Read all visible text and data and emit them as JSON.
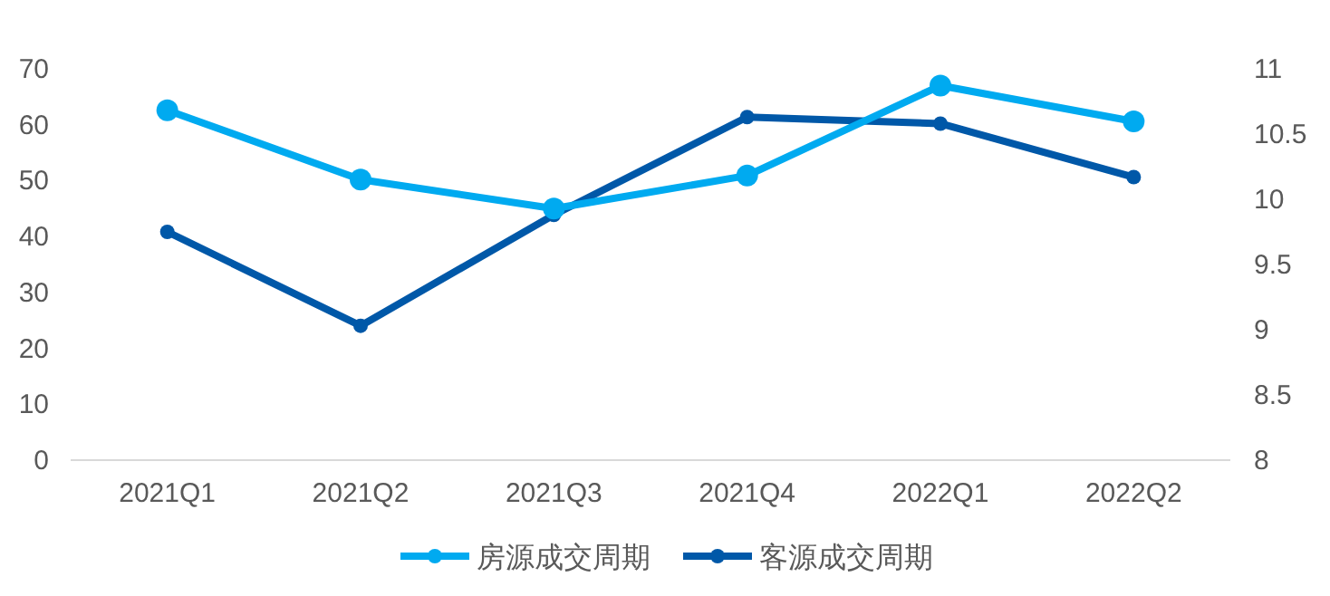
{
  "chart_data": {
    "type": "line",
    "categories": [
      "2021Q1",
      "2021Q2",
      "2021Q3",
      "2021Q4",
      "2022Q1",
      "2022Q2"
    ],
    "series": [
      {
        "name": "房源成交周期",
        "color": "#00aaf0",
        "values": [
          62.6,
          50.2,
          45,
          50.9,
          67,
          60.6
        ]
      },
      {
        "name": "客源成交周期",
        "color": "#0058a8",
        "axis": "y2",
        "values": [
          9.75,
          9.03,
          9.88,
          10.63,
          10.58,
          10.17
        ]
      }
    ],
    "ylim": [
      0,
      70
    ],
    "yticks": [
      0,
      10,
      20,
      30,
      40,
      50,
      60,
      70
    ],
    "y2lim": [
      8,
      11
    ],
    "y2ticks": [
      8,
      8.5,
      9,
      9.5,
      10,
      10.5,
      11
    ],
    "grid": false,
    "legend": "bottom",
    "marker": "circle",
    "line_style": "solid"
  }
}
